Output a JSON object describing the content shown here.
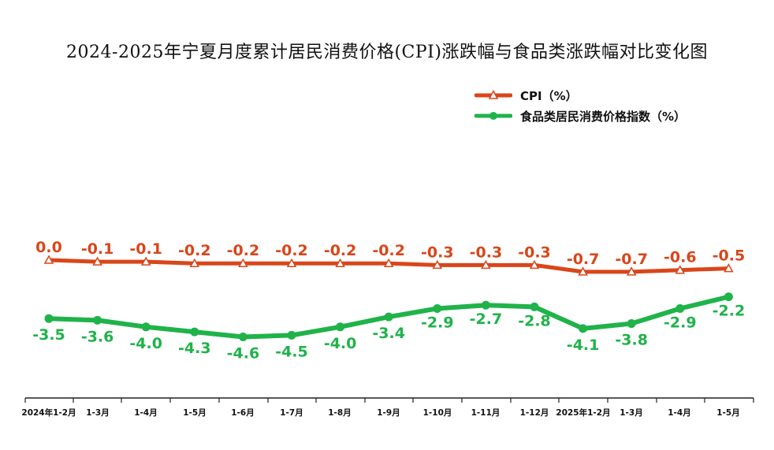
{
  "title": "2024-2025年宁夏月度累计居民消费价格(CPI)涨跌幅与食品类涨跌幅对比变化图",
  "legend": [
    {
      "label": "CPI（%）",
      "color": "#d9461a",
      "marker": "triangle"
    },
    {
      "label": "食品类居民消费价格指数（%）",
      "color": "#1fb34a",
      "marker": "circle"
    }
  ],
  "chart_data": {
    "type": "line",
    "title": "2024-2025年宁夏月度累计居民消费价格(CPI)涨跌幅与食品类涨跌幅对比变化图",
    "categories": [
      "2024年1-2月",
      "1-3月",
      "1-4月",
      "1-5月",
      "1-6月",
      "1-7月",
      "1-8月",
      "1-9月",
      "1-10月",
      "1-11月",
      "1-12月",
      "2025年1-2月",
      "1-3月",
      "1-4月",
      "1-5月"
    ],
    "series": [
      {
        "name": "CPI（%）",
        "color": "#d9461a",
        "marker": "triangle",
        "values": [
          0.0,
          -0.1,
          -0.1,
          -0.2,
          -0.2,
          -0.2,
          -0.2,
          -0.2,
          -0.3,
          -0.3,
          -0.3,
          -0.7,
          -0.7,
          -0.6,
          -0.5
        ],
        "labels": [
          "0.0",
          "-0.1",
          "-0.1",
          "-0.2",
          "-0.2",
          "-0.2",
          "-0.2",
          "-0.2",
          "-0.3",
          "-0.3",
          "-0.3",
          "-0.7",
          "-0.7",
          "-0.6",
          "-0.5"
        ]
      },
      {
        "name": "食品类居民消费价格指数（%）",
        "color": "#1fb34a",
        "marker": "circle",
        "values": [
          -3.5,
          -3.6,
          -4.0,
          -4.3,
          -4.6,
          -4.5,
          -4.0,
          -3.4,
          -2.9,
          -2.7,
          -2.8,
          -4.1,
          -3.8,
          -2.9,
          -2.2
        ],
        "labels": [
          "-3.5",
          "-3.6",
          "-4.0",
          "-4.3",
          "-4.6",
          "-4.5",
          "-4.0",
          "-3.4",
          "-2.9",
          "-2.7",
          "-2.8",
          "-4.1",
          "-3.8",
          "-2.9",
          "-2.2"
        ]
      }
    ],
    "xlabel": "",
    "ylabel": "",
    "grid": false,
    "legend_position": "top-right"
  }
}
